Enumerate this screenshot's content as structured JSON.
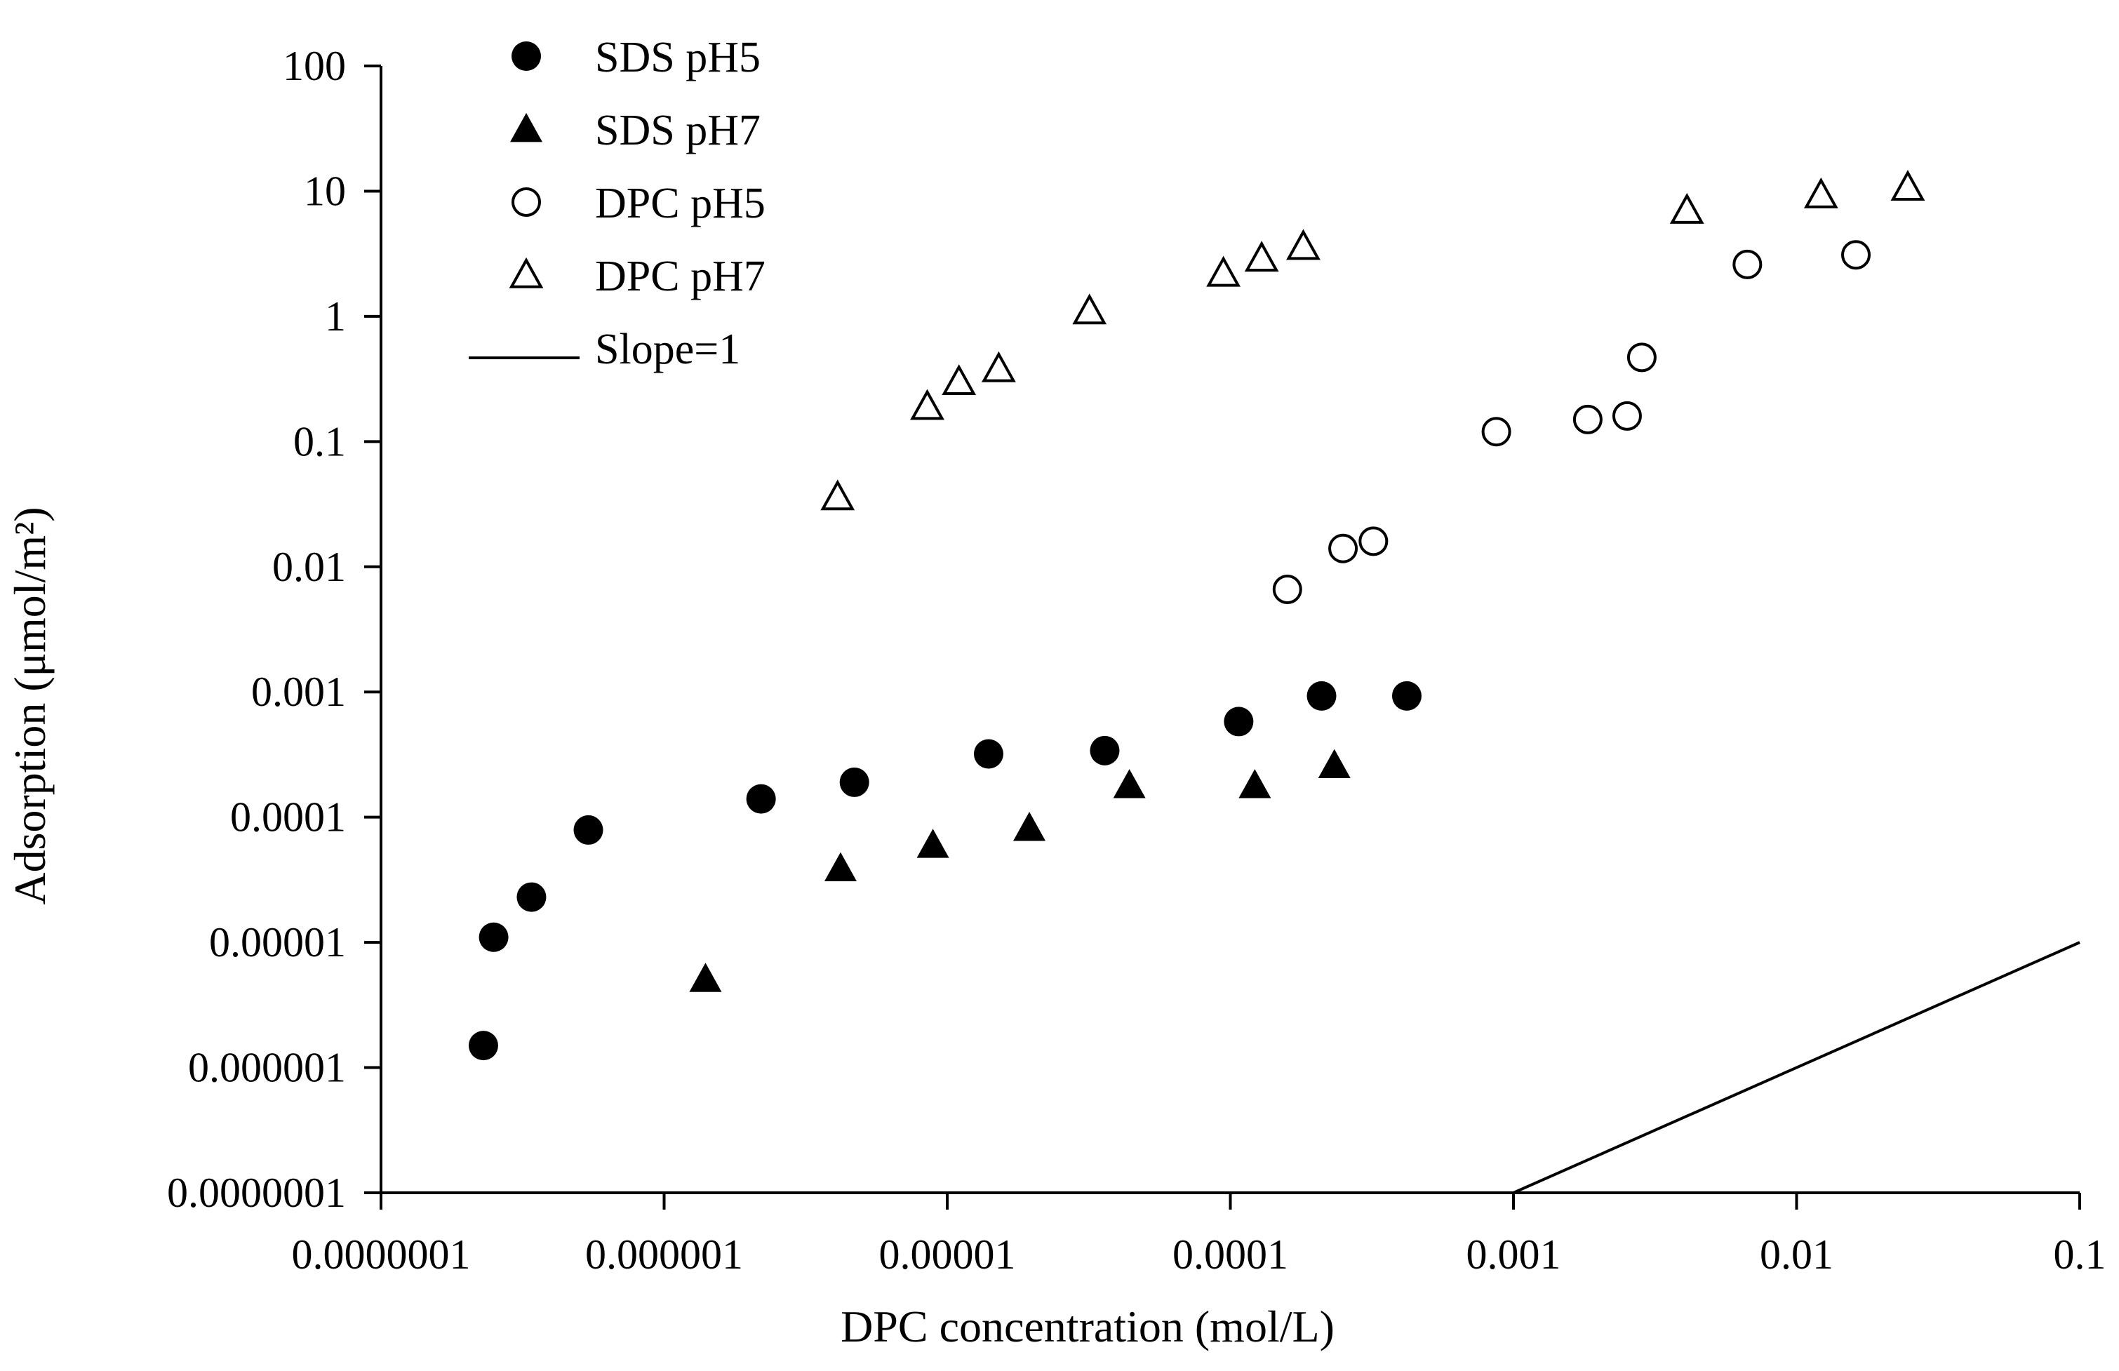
{
  "chart_data": {
    "type": "scatter",
    "xlabel": "DPC concentration (mol/L)",
    "ylabel": "Adsorption (μmol/m²)",
    "xscale": "log",
    "yscale": "log",
    "xlim": [
      1e-07,
      0.1
    ],
    "ylim": [
      1e-07,
      100
    ],
    "x_ticks": [
      {
        "value": 1e-07,
        "label": "0.0000001"
      },
      {
        "value": 1e-06,
        "label": "0.000001"
      },
      {
        "value": 1e-05,
        "label": "0.00001"
      },
      {
        "value": 0.0001,
        "label": "0.0001"
      },
      {
        "value": 0.001,
        "label": "0.001"
      },
      {
        "value": 0.01,
        "label": "0.01"
      },
      {
        "value": 0.1,
        "label": "0.1"
      }
    ],
    "y_ticks": [
      {
        "value": 1e-07,
        "label": "0.0000001"
      },
      {
        "value": 1e-06,
        "label": "0.000001"
      },
      {
        "value": 1e-05,
        "label": "0.00001"
      },
      {
        "value": 0.0001,
        "label": "0.0001"
      },
      {
        "value": 0.001,
        "label": "0.001"
      },
      {
        "value": 0.01,
        "label": "0.01"
      },
      {
        "value": 0.1,
        "label": "0.1"
      },
      {
        "value": 1,
        "label": "1"
      },
      {
        "value": 10,
        "label": "10"
      },
      {
        "value": 100,
        "label": "100"
      }
    ],
    "grid": false,
    "legend_position": "top-left",
    "series": [
      {
        "name": "SDS pH5",
        "marker": "circle-filled",
        "points": [
          {
            "x": 2.3e-07,
            "y": 1.5e-06
          },
          {
            "x": 2.5e-07,
            "y": 1.1e-05
          },
          {
            "x": 3.4e-07,
            "y": 2.3e-05
          },
          {
            "x": 5.4e-07,
            "y": 7.9e-05
          },
          {
            "x": 2.2e-06,
            "y": 0.00014
          },
          {
            "x": 4.7e-06,
            "y": 0.00019
          },
          {
            "x": 1.4e-05,
            "y": 0.00032
          },
          {
            "x": 3.6e-05,
            "y": 0.00034
          },
          {
            "x": 0.000107,
            "y": 0.00058
          },
          {
            "x": 0.00021,
            "y": 0.00093
          },
          {
            "x": 0.00042,
            "y": 0.00093
          }
        ]
      },
      {
        "name": "SDS pH7",
        "marker": "triangle-filled",
        "points": [
          {
            "x": 1.4e-06,
            "y": 5.1e-06
          },
          {
            "x": 4.2e-06,
            "y": 3.9e-05
          },
          {
            "x": 8.9e-06,
            "y": 6e-05
          },
          {
            "x": 1.95e-05,
            "y": 8.2e-05
          },
          {
            "x": 4.4e-05,
            "y": 0.00018
          },
          {
            "x": 0.000122,
            "y": 0.00018
          },
          {
            "x": 0.000233,
            "y": 0.00026
          }
        ]
      },
      {
        "name": "DPC pH5",
        "marker": "circle-open",
        "points": [
          {
            "x": 0.000159,
            "y": 0.0066
          },
          {
            "x": 0.00025,
            "y": 0.014
          },
          {
            "x": 0.00032,
            "y": 0.016
          },
          {
            "x": 0.00087,
            "y": 0.12
          },
          {
            "x": 0.00183,
            "y": 0.15
          },
          {
            "x": 0.00252,
            "y": 0.16
          },
          {
            "x": 0.00284,
            "y": 0.47
          },
          {
            "x": 0.0067,
            "y": 2.6
          },
          {
            "x": 0.0162,
            "y": 3.1
          }
        ]
      },
      {
        "name": "DPC pH7",
        "marker": "triangle-open",
        "points": [
          {
            "x": 4.1e-06,
            "y": 0.036
          },
          {
            "x": 8.5e-06,
            "y": 0.19
          },
          {
            "x": 1.1e-05,
            "y": 0.3
          },
          {
            "x": 1.52e-05,
            "y": 0.38
          },
          {
            "x": 3.18e-05,
            "y": 1.1
          },
          {
            "x": 9.45e-05,
            "y": 2.2
          },
          {
            "x": 0.000129,
            "y": 2.9
          },
          {
            "x": 0.000181,
            "y": 3.6
          },
          {
            "x": 0.0041,
            "y": 7.0
          },
          {
            "x": 0.0122,
            "y": 9.3
          },
          {
            "x": 0.0247,
            "y": 10.7
          }
        ]
      },
      {
        "name": "Slope=1",
        "marker": "line",
        "points": [
          {
            "x": 0.001,
            "y": 1e-07
          },
          {
            "x": 0.1,
            "y": 1e-05
          }
        ]
      }
    ]
  }
}
